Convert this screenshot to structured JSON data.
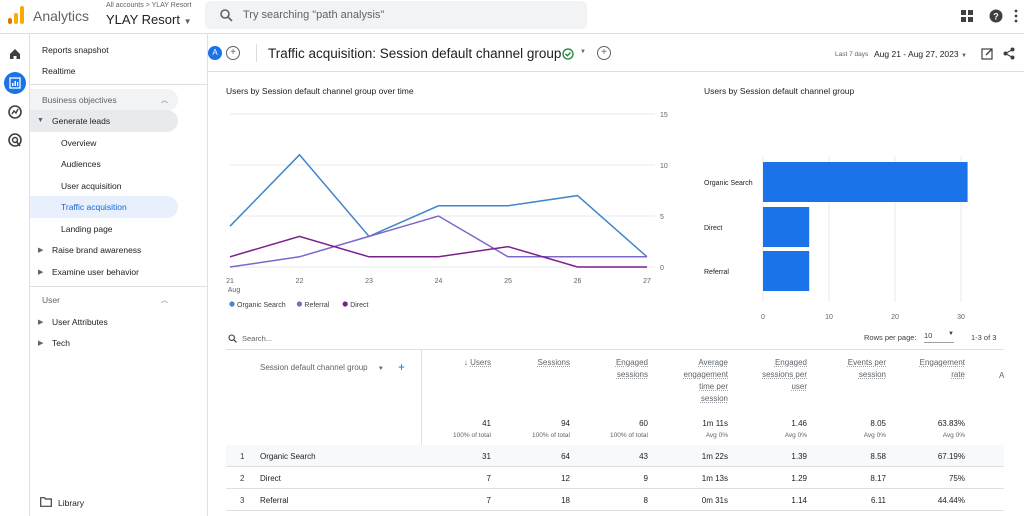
{
  "app": {
    "title": "Analytics",
    "breadcrumb": "All accounts > YLAY Resort",
    "property": "YLAY Resort",
    "search_placeholder": "Try searching \"path analysis\""
  },
  "colors": {
    "accent": "#1a73e8",
    "organic": "#4285c8",
    "referral": "#7b68c8",
    "direct": "#7b1f8a",
    "bar": "#1a73e8"
  },
  "nav": {
    "top": [
      "Reports snapshot",
      "Realtime"
    ],
    "business_objectives": "Business objectives",
    "generate_leads": "Generate leads",
    "sub": [
      "Overview",
      "Audiences",
      "User acquisition",
      "Traffic acquisition",
      "Landing page"
    ],
    "raise_brand": "Raise brand awareness",
    "examine": "Examine user behavior",
    "user": "User",
    "user_attributes": "User Attributes",
    "tech": "Tech",
    "library": "Library"
  },
  "header": {
    "avatar": "A",
    "title": "Traffic acquisition: Session default channel group",
    "date_label": "Last 7 days",
    "date_range": "Aug 21 - Aug 27, 2023"
  },
  "line_chart": {
    "title": "Users by Session default channel group over time",
    "chart_data": {
      "type": "line",
      "x": [
        "21 Aug",
        "22",
        "23",
        "24",
        "25",
        "26",
        "27"
      ],
      "x_ticks": [
        "21",
        "22",
        "23",
        "24",
        "25",
        "26",
        "27"
      ],
      "x_sublabel": "Aug",
      "ylim": [
        0,
        15
      ],
      "y_ticks": [
        "15",
        "10",
        "5",
        "0"
      ],
      "series": [
        {
          "name": "Organic Search",
          "values": [
            4,
            11,
            3,
            6,
            6,
            7,
            1
          ]
        },
        {
          "name": "Referral",
          "values": [
            0,
            1,
            3,
            5,
            1,
            1,
            1
          ]
        },
        {
          "name": "Direct",
          "values": [
            1,
            3,
            1,
            1,
            2,
            0,
            0
          ]
        }
      ]
    }
  },
  "bar_chart": {
    "title": "Users by Session default channel group",
    "chart_data": {
      "type": "bar",
      "categories": [
        "Organic Search",
        "Direct",
        "Referral"
      ],
      "values": [
        31,
        7,
        7
      ],
      "xlim": [
        0,
        30
      ],
      "x_ticks": [
        "0",
        "10",
        "20",
        "30"
      ]
    }
  },
  "table": {
    "search_placeholder": "Search...",
    "rows_per_page_label": "Rows per page:",
    "rows_per_page": "10",
    "pagination": "1-3 of 3",
    "dimension": "Session default channel group",
    "plus": "+",
    "sort_arrow": "↓",
    "columns": [
      {
        "label": [
          "Users"
        ],
        "total": "41",
        "sub": "100% of total"
      },
      {
        "label": [
          "Sessions"
        ],
        "total": "94",
        "sub": "100% of total"
      },
      {
        "label": [
          "Engaged",
          "sessions"
        ],
        "total": "60",
        "sub": "100% of total"
      },
      {
        "label": [
          "Average",
          "engagement",
          "time per",
          "session"
        ],
        "total": "1m 11s",
        "sub": "Avg 0%"
      },
      {
        "label": [
          "Engaged",
          "sessions per",
          "user"
        ],
        "total": "1.46",
        "sub": "Avg 0%"
      },
      {
        "label": [
          "Events per",
          "session"
        ],
        "total": "8.05",
        "sub": "Avg 0%"
      },
      {
        "label": [
          "Engagement",
          "rate"
        ],
        "total": "63.83%",
        "sub": "Avg 0%"
      }
    ],
    "rows": [
      {
        "idx": "1",
        "name": "Organic Search",
        "values": [
          "31",
          "64",
          "43",
          "1m 22s",
          "1.39",
          "8.58",
          "67.19%"
        ]
      },
      {
        "idx": "2",
        "name": "Direct",
        "values": [
          "7",
          "12",
          "9",
          "1m 13s",
          "1.29",
          "8.17",
          "75%"
        ]
      },
      {
        "idx": "3",
        "name": "Referral",
        "values": [
          "7",
          "18",
          "8",
          "0m 31s",
          "1.14",
          "6.11",
          "44.44%"
        ]
      }
    ]
  }
}
